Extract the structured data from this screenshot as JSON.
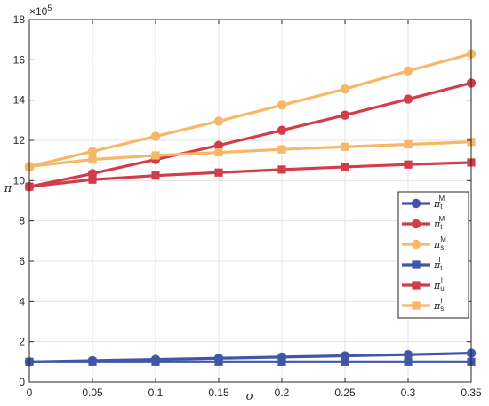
{
  "chart_data": {
    "type": "line",
    "x": [
      0,
      0.05,
      0.1,
      0.15,
      0.2,
      0.25,
      0.3,
      0.35
    ],
    "xlabel": "σ",
    "ylabel": "π",
    "xlim": [
      0,
      0.35
    ],
    "ylim": [
      0,
      18
    ],
    "x_ticks": [
      "0",
      "0.05",
      "0.1",
      "0.15",
      "0.2",
      "0.25",
      "0.3",
      "0.35"
    ],
    "y_ticks": [
      "0",
      "2",
      "4",
      "6",
      "8",
      "10",
      "12",
      "14",
      "16",
      "18"
    ],
    "y_multiplier": "×10",
    "y_multiplier_exp": "5",
    "grid": true,
    "legend_position": "right",
    "series": [
      {
        "sym": "π",
        "sub": "t",
        "sup": "M",
        "marker": "circle",
        "color": "#4057a7",
        "values": [
          1.0,
          1.06,
          1.12,
          1.18,
          1.24,
          1.3,
          1.36,
          1.43
        ]
      },
      {
        "sym": "π",
        "sub": "t",
        "sup": "M",
        "marker": "circle",
        "color": "#d23d4b",
        "values": [
          9.7,
          10.35,
          11.05,
          11.75,
          12.5,
          13.25,
          14.05,
          14.85
        ]
      },
      {
        "sym": "π",
        "sub": "s",
        "sup": "M",
        "marker": "circle",
        "color": "#f6b767",
        "values": [
          10.7,
          11.45,
          12.2,
          12.95,
          13.75,
          14.55,
          15.45,
          16.3
        ]
      },
      {
        "sym": "π",
        "sub": "t",
        "sup": "I",
        "marker": "square",
        "color": "#4057a7",
        "values": [
          1.0,
          1.0,
          1.0,
          1.0,
          1.0,
          1.0,
          1.0,
          1.0
        ]
      },
      {
        "sym": "π",
        "sub": "u",
        "sup": "I",
        "marker": "square",
        "color": "#d23d4b",
        "values": [
          9.7,
          10.05,
          10.25,
          10.4,
          10.55,
          10.68,
          10.8,
          10.9
        ]
      },
      {
        "sym": "π",
        "sub": "s",
        "sup": "I",
        "marker": "square",
        "color": "#f6b767",
        "values": [
          10.7,
          11.05,
          11.25,
          11.4,
          11.55,
          11.68,
          11.8,
          11.92
        ]
      }
    ]
  }
}
